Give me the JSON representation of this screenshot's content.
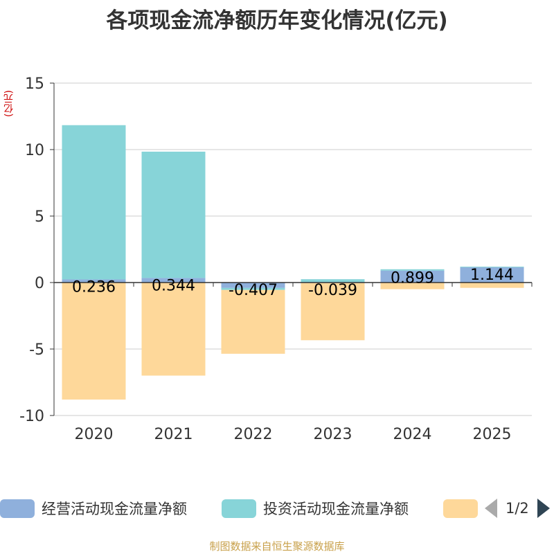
{
  "title": "各项现金流净额历年变化情况(亿元)",
  "source": "制图数据来自恒生聚源数据库",
  "legend_pager": {
    "page": "1/2"
  },
  "colors": {
    "operating": "#8fb0dc",
    "investing": "#87d4d8",
    "financing": "#fed89a",
    "axis": "#333333",
    "grid": "#cccccc",
    "unit": "#cc0000"
  },
  "chart_data": {
    "type": "bar",
    "stacked": true,
    "unit_label": "(亿元)",
    "categories": [
      "2020",
      "2021",
      "2022",
      "2023",
      "2024",
      "2025"
    ],
    "ylim": [
      -10,
      15
    ],
    "yticks": [
      15,
      10,
      5,
      0,
      -5,
      -10
    ],
    "grid": true,
    "legend_position": "bottom",
    "series": [
      {
        "name": "经营活动现金流量净额",
        "values": [
          0.236,
          0.344,
          -0.407,
          -0.039,
          0.899,
          1.144
        ],
        "labels": [
          "0.236",
          "0.344",
          "-0.407",
          "-0.039",
          "0.899",
          "1.144"
        ]
      },
      {
        "name": "投资活动现金流量净额",
        "values": [
          11.6,
          9.5,
          -0.15,
          0.25,
          0.1,
          0.05
        ]
      },
      {
        "name": "",
        "values": [
          -8.8,
          -7.0,
          -4.8,
          -4.3,
          -0.5,
          -0.4
        ]
      }
    ]
  }
}
